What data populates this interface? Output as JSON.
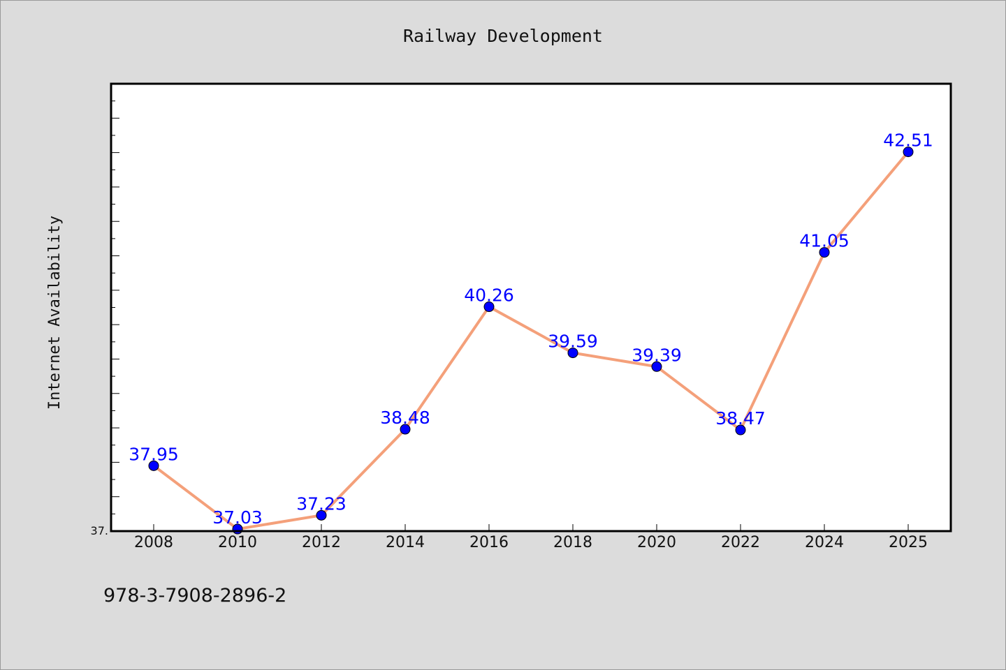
{
  "chart_data": {
    "type": "line",
    "title": "Railway Development",
    "xlabel": "",
    "ylabel": "Internet Availability",
    "categories": [
      "2008",
      "2010",
      "2012",
      "2014",
      "2016",
      "2018",
      "2020",
      "2022",
      "2024",
      "2025"
    ],
    "series": [
      {
        "values": [
          37.95,
          37.03,
          37.23,
          38.48,
          40.26,
          39.59,
          39.39,
          38.47,
          41.05,
          42.51
        ],
        "labels": [
          "37.95",
          "37.03",
          "37.23",
          "38.48",
          "40.26",
          "39.59",
          "39.39",
          "38.47",
          "41.05",
          "42.51"
        ],
        "line_color": "#f4a07a",
        "marker_color": "#0000ff"
      }
    ],
    "ylim": [
      37.0,
      43.5
    ],
    "ytick_labels": [
      "37."
    ],
    "grid": false,
    "legend": "none"
  },
  "footer": {
    "isbn": "978-3-7908-2896-2"
  },
  "colors": {
    "background": "#dcdcdc",
    "plot_background": "#ffffff",
    "line": "#f4a07a",
    "marker": "#0000ff",
    "data_label": "#0000ff"
  }
}
